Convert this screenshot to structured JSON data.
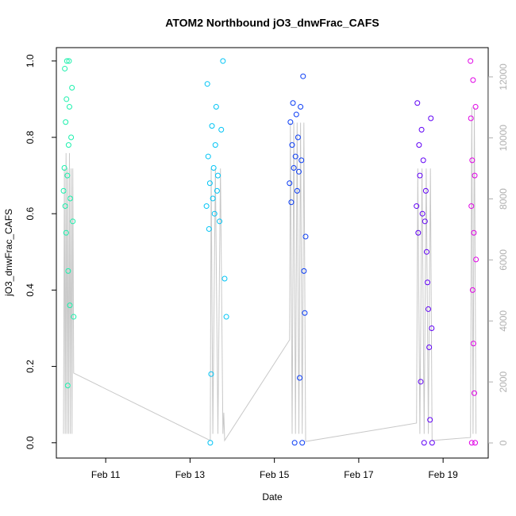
{
  "chart_data": {
    "type": "scatter",
    "title": "ATOM2 Northbound jO3_dnwFrac_CAFS",
    "x_label": "Date",
    "y_label": "jO3_dnwFrac_CAFS",
    "xlim": [
      9.83,
      20.07
    ],
    "xticks": [
      {
        "value": 11,
        "label": "Feb 11"
      },
      {
        "value": 13,
        "label": "Feb 13"
      },
      {
        "value": 15,
        "label": "Feb 15"
      },
      {
        "value": 17,
        "label": "Feb 17"
      },
      {
        "value": 19,
        "label": "Feb 19"
      }
    ],
    "ylim": [
      -0.04,
      1.035
    ],
    "yticks": [
      {
        "value": 0,
        "label": "0.0"
      },
      0.2,
      0.4,
      0.6,
      0.8,
      {
        "value": 1,
        "label": "1.0"
      }
    ],
    "y2lim": [
      -495,
      12960
    ],
    "y2ticks": [
      0,
      2000,
      4000,
      6000,
      8000,
      10000,
      12000
    ],
    "series": [
      {
        "mode": "line",
        "axis": "y2",
        "color": "#c8c8c8",
        "x": [
          10.0,
          10.02,
          10.04,
          10.06,
          10.08,
          10.1,
          10.12,
          10.14,
          10.16,
          10.18,
          10.2,
          10.22,
          10.24,
          13.48,
          13.5,
          13.54,
          13.6,
          13.66,
          13.72,
          13.78,
          13.8,
          13.82,
          15.36,
          15.38,
          15.42,
          15.46,
          15.5,
          15.54,
          15.58,
          15.62,
          15.66,
          15.7,
          15.74,
          18.37,
          18.4,
          18.45,
          18.5,
          18.55,
          18.6,
          18.65,
          18.7,
          18.74,
          19.65,
          19.68,
          19.71,
          19.74,
          19.78
        ],
        "values": [
          300,
          9000,
          300,
          9500,
          300,
          9000,
          300,
          9500,
          300,
          9000,
          300,
          9000,
          2290,
          80,
          9000,
          300,
          9000,
          300,
          9000,
          300,
          990,
          80,
          3380,
          10500,
          300,
          10500,
          300,
          10500,
          300,
          10500,
          300,
          10500,
          50,
          650,
          9000,
          300,
          9000,
          300,
          9000,
          300,
          9000,
          80,
          180,
          11000,
          300,
          11000,
          300
        ]
      },
      {
        "mode": "points",
        "color": "#1af0ac",
        "x": [
          10.0,
          10.02,
          10.03,
          10.04,
          10.05,
          10.06,
          10.07,
          10.08,
          10.09,
          10.1,
          10.11,
          10.12,
          10.13,
          10.14,
          10.15,
          10.16,
          10.18,
          10.2,
          10.22,
          10.24
        ],
        "values": [
          0.66,
          0.72,
          0.98,
          0.62,
          0.84,
          0.55,
          0.9,
          1.0,
          0.7,
          0.15,
          0.45,
          0.78,
          1.0,
          0.88,
          0.36,
          0.64,
          0.8,
          0.93,
          0.58,
          0.33
        ]
      },
      {
        "mode": "points",
        "color": "#00c4f5",
        "x": [
          13.39,
          13.41,
          13.43,
          13.45,
          13.47,
          13.48,
          13.5,
          13.52,
          13.54,
          13.56,
          13.58,
          13.6,
          13.62,
          13.64,
          13.66,
          13.7,
          13.74,
          13.78,
          13.82,
          13.86
        ],
        "values": [
          0.62,
          0.94,
          0.75,
          0.56,
          0.68,
          0.0,
          0.18,
          0.83,
          0.64,
          0.72,
          0.6,
          0.78,
          0.88,
          0.66,
          0.7,
          0.58,
          0.82,
          1.0,
          0.43,
          0.33
        ]
      },
      {
        "mode": "points",
        "color": "#0a3cf5",
        "x": [
          15.36,
          15.38,
          15.4,
          15.42,
          15.44,
          15.46,
          15.48,
          15.5,
          15.52,
          15.54,
          15.56,
          15.58,
          15.6,
          15.62,
          15.64,
          15.66,
          15.68,
          15.7,
          15.72,
          15.74
        ],
        "values": [
          0.68,
          0.84,
          0.63,
          0.78,
          0.89,
          0.72,
          0.0,
          0.75,
          0.86,
          0.66,
          0.8,
          0.71,
          0.17,
          0.88,
          0.74,
          0.0,
          0.96,
          0.45,
          0.34,
          0.54
        ]
      },
      {
        "mode": "points",
        "color": "#6000f5",
        "x": [
          18.37,
          18.39,
          18.41,
          18.43,
          18.45,
          18.47,
          18.49,
          18.51,
          18.53,
          18.55,
          18.57,
          18.59,
          18.61,
          18.63,
          18.65,
          18.67,
          18.69,
          18.71,
          18.73,
          18.74
        ],
        "values": [
          0.62,
          0.89,
          0.55,
          0.78,
          0.7,
          0.16,
          0.82,
          0.6,
          0.74,
          0.0,
          0.58,
          0.66,
          0.5,
          0.42,
          0.35,
          0.25,
          0.06,
          0.85,
          0.3,
          0.0
        ]
      },
      {
        "mode": "points",
        "color": "#e000e6",
        "x": [
          19.65,
          19.66,
          19.67,
          19.68,
          19.69,
          19.7,
          19.71,
          19.72,
          19.73,
          19.74,
          19.75,
          19.76,
          19.77,
          19.78
        ],
        "values": [
          1.0,
          0.85,
          0.62,
          0.0,
          0.74,
          0.4,
          0.95,
          0.26,
          0.55,
          0.13,
          0.7,
          0.0,
          0.88,
          0.48
        ]
      }
    ]
  }
}
